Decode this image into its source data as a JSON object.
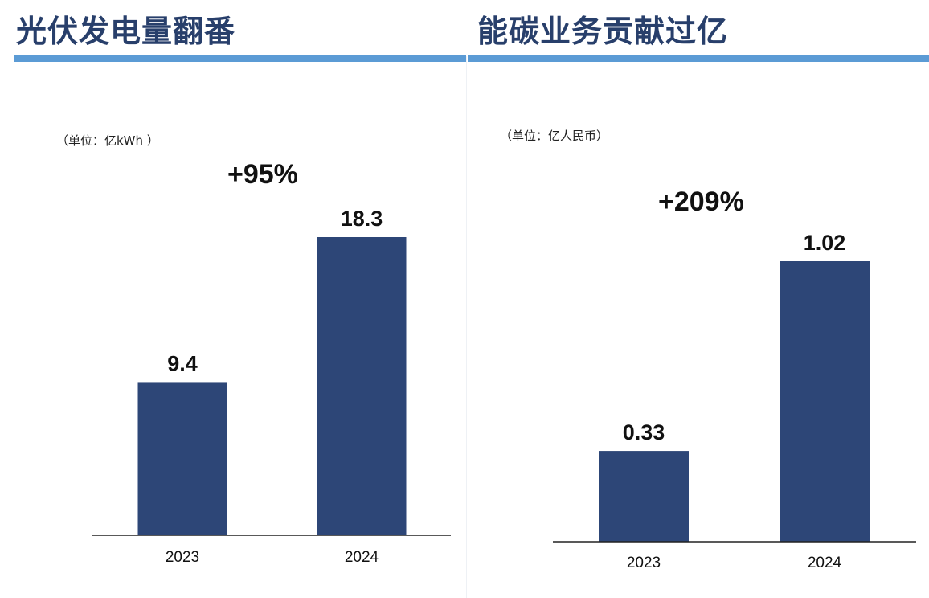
{
  "charts": [
    {
      "title": "光伏发电量翻番",
      "unit_label": "（单位：亿kWh ）",
      "growth_label": "+95%",
      "chart_data": {
        "type": "bar",
        "categories": [
          "2023",
          "2024"
        ],
        "values": [
          9.4,
          18.3
        ],
        "value_labels": [
          "9.4",
          "18.3"
        ],
        "title": "光伏发电量翻番",
        "ylabel": "（单位：亿kWh ）",
        "annotations": [
          "+95%"
        ],
        "bar_color": "#2d4677"
      }
    },
    {
      "title": "能碳业务贡献过亿",
      "unit_label": "（单位：亿人民币）",
      "growth_label": "+209%",
      "chart_data": {
        "type": "bar",
        "categories": [
          "2023",
          "2024"
        ],
        "values": [
          0.33,
          1.02
        ],
        "value_labels": [
          "0.33",
          "1.02"
        ],
        "title": "能碳业务贡献过亿",
        "ylabel": "（单位：亿人民币）",
        "annotations": [
          "+209%"
        ],
        "bar_color": "#2d4677"
      }
    }
  ],
  "colors": {
    "title": "#283f6b",
    "accent_rule": "#5b9bd5",
    "bar": "#2d4677"
  }
}
